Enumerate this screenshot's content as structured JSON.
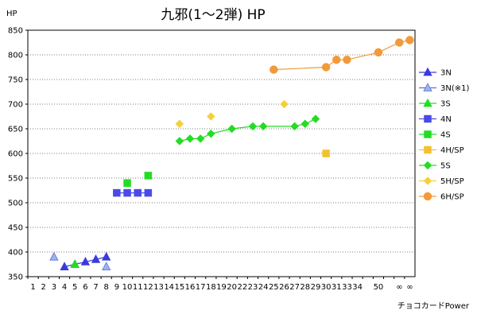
{
  "chart_data": {
    "type": "scatter",
    "title": "九邪(1～2弾) HP",
    "ylabel": "HP",
    "ylim": [
      350,
      850
    ],
    "yticks": [
      350,
      400,
      450,
      500,
      550,
      600,
      650,
      700,
      750,
      800,
      850
    ],
    "x_tick_labels": [
      "1",
      "2",
      "3",
      "4",
      "5",
      "6",
      "7",
      "8",
      "9",
      "10",
      "11",
      "12",
      "13",
      "14",
      "15",
      "16",
      "17",
      "18",
      "19",
      "20",
      "22",
      "23",
      "24",
      "25",
      "26",
      "27",
      "28",
      "29",
      "30",
      "31",
      "33",
      "34",
      "",
      "50",
      "",
      "∞",
      "∞"
    ],
    "grid": "horizontal dotted",
    "legend_position": "right",
    "credit": "チョコカードPower",
    "colors": {
      "grid": "#555555",
      "axis": "#000000"
    },
    "series": [
      {
        "name": "3N",
        "marker": "triangle",
        "color": "#3b3bd9",
        "stroke": "#3b3bd9",
        "line": true,
        "legend_line": true,
        "points": [
          [
            "4",
            370
          ],
          [
            "5",
            375
          ],
          [
            "6",
            380
          ],
          [
            "7",
            385
          ],
          [
            "8",
            390
          ]
        ]
      },
      {
        "name": "3N(※1)",
        "marker": "triangle",
        "color": "#9ab5ea",
        "stroke": "#5b6fd0",
        "line": false,
        "legend_line": true,
        "points": [
          [
            "3",
            390
          ],
          [
            "8",
            370
          ]
        ]
      },
      {
        "name": "3S",
        "marker": "triangle",
        "color": "#22dd22",
        "stroke": "#22dd22",
        "line": false,
        "legend_line": true,
        "points": [
          [
            "5",
            375
          ]
        ]
      },
      {
        "name": "4N",
        "marker": "square",
        "color": "#4a4ae8",
        "stroke": "#4a4ae8",
        "line": true,
        "legend_line": true,
        "points": [
          [
            "9",
            520
          ],
          [
            "10",
            520
          ],
          [
            "11",
            520
          ],
          [
            "12",
            520
          ]
        ]
      },
      {
        "name": "4S",
        "marker": "square",
        "color": "#22dd22",
        "stroke": "#22dd22",
        "line": false,
        "legend_line": true,
        "points": [
          [
            "10",
            540
          ],
          [
            "12",
            555
          ]
        ]
      },
      {
        "name": "4H/SP",
        "marker": "square",
        "color": "#f2c12e",
        "stroke": "#f2c12e",
        "line": false,
        "legend_line": true,
        "points": [
          [
            "30",
            600
          ]
        ]
      },
      {
        "name": "5S",
        "marker": "diamond",
        "color": "#22dd22",
        "stroke": "#22dd22",
        "line": true,
        "legend_line": true,
        "points": [
          [
            "15",
            625
          ],
          [
            "16",
            630
          ],
          [
            "17",
            630
          ],
          [
            "18",
            640
          ],
          [
            "20",
            650
          ],
          [
            "23",
            655
          ],
          [
            "24",
            655
          ],
          [
            "27",
            655
          ],
          [
            "28",
            660
          ],
          [
            "29",
            670
          ]
        ]
      },
      {
        "name": "5H/SP",
        "marker": "diamond",
        "color": "#f7cf3a",
        "stroke": "#f7cf3a",
        "line": false,
        "legend_line": true,
        "points": [
          [
            "15",
            660
          ],
          [
            "18",
            675
          ],
          [
            "26",
            700
          ]
        ]
      },
      {
        "name": "6H/SP",
        "marker": "circle",
        "color": "#f29a3a",
        "stroke": "#f29a3a",
        "line": true,
        "legend_line": true,
        "points": [
          [
            "25",
            770
          ],
          [
            "30",
            775
          ],
          [
            "31",
            790
          ],
          [
            "33",
            790
          ],
          [
            "50",
            805
          ],
          [
            "∞a",
            825
          ],
          [
            "∞b",
            830
          ]
        ]
      }
    ]
  }
}
